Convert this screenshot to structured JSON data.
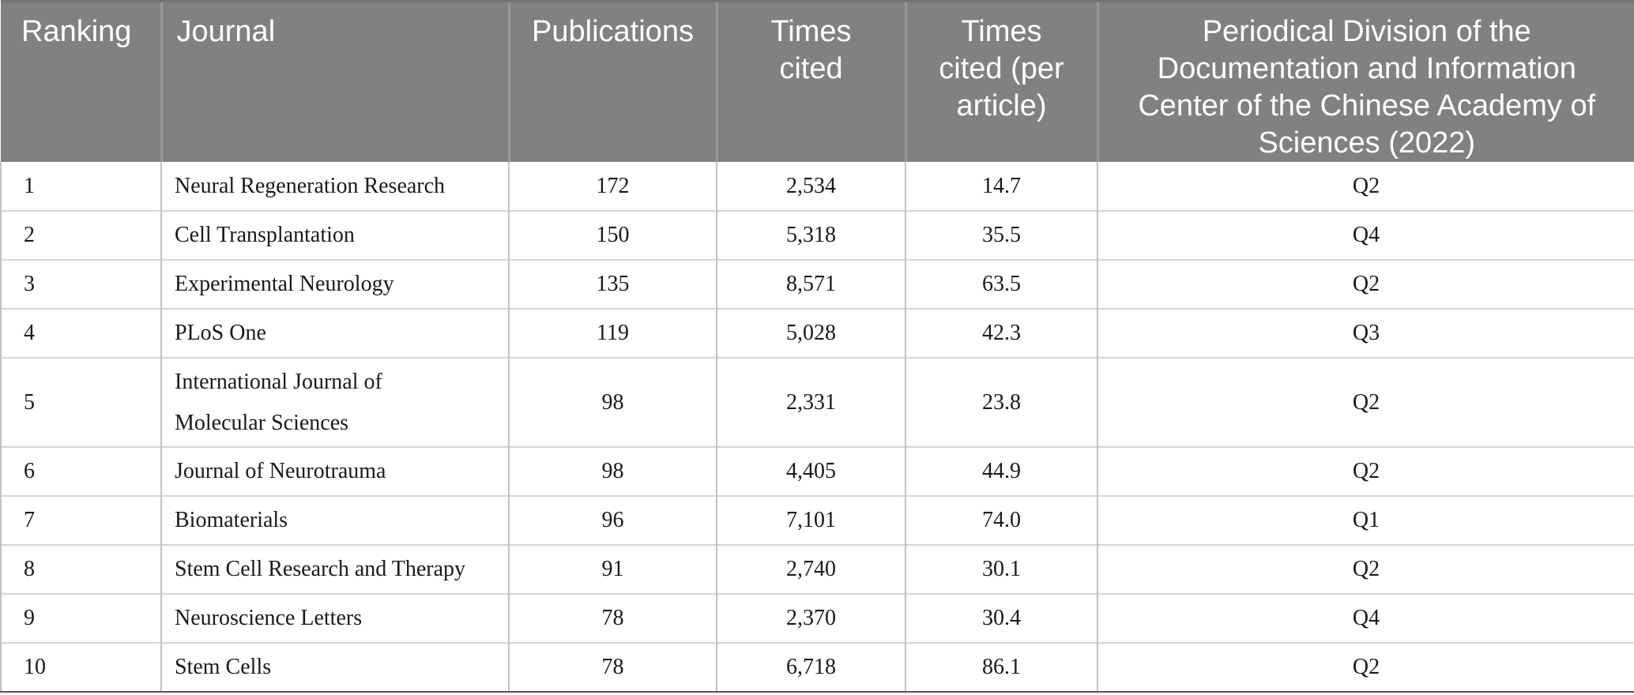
{
  "colors": {
    "header_background": "#818181",
    "header_separator": "#989898",
    "header_text": "#ffffff",
    "body_text": "#1a1a1a",
    "grid_horizontal": "#d6d6d6",
    "grid_vertical": "#c2c2c2",
    "table_bottom_border": "#515151"
  },
  "table": {
    "headers": [
      "Ranking",
      "Journal",
      "Publications",
      "Times cited",
      "Times cited (per article)",
      "Periodical Division of the Documentation and Information Center of the Chinese Academy of Sciences (2022)"
    ],
    "rows": [
      [
        "1",
        "Neural Regeneration Research",
        "172",
        "2,534",
        "14.7",
        "Q2"
      ],
      [
        "2",
        "Cell Transplantation",
        "150",
        "5,318",
        "35.5",
        "Q4"
      ],
      [
        "3",
        "Experimental Neurology",
        "135",
        "8,571",
        "63.5",
        "Q2"
      ],
      [
        "4",
        "PLoS One",
        "119",
        "5,028",
        "42.3",
        "Q3"
      ],
      [
        "5",
        "International Journal of Molecular Sciences",
        "98",
        "2,331",
        "23.8",
        "Q2"
      ],
      [
        "6",
        "Journal of Neurotrauma",
        "98",
        "4,405",
        "44.9",
        "Q2"
      ],
      [
        "7",
        "Biomaterials",
        "96",
        "7,101",
        "74.0",
        "Q1"
      ],
      [
        "8",
        "Stem Cell Research and Therapy",
        "91",
        "2,740",
        "30.1",
        "Q2"
      ],
      [
        "9",
        "Neuroscience Letters",
        "78",
        "2,370",
        "30.4",
        "Q4"
      ],
      [
        "10",
        "Stem Cells",
        "78",
        "6,718",
        "86.1",
        "Q2"
      ]
    ]
  }
}
